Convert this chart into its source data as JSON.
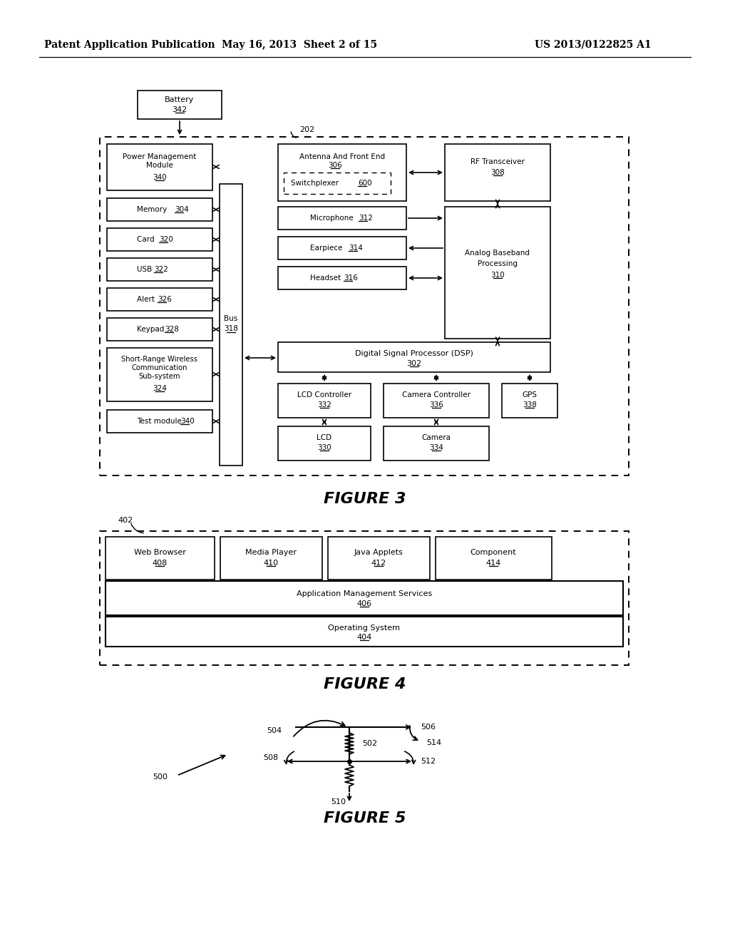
{
  "header_left": "Patent Application Publication",
  "header_mid": "May 16, 2013  Sheet 2 of 15",
  "header_right": "US 2013/0122825 A1",
  "fig3_label": "FIGURE 3",
  "fig4_label": "FIGURE 4",
  "fig5_label": "FIGURE 5",
  "bg_color": "#ffffff"
}
